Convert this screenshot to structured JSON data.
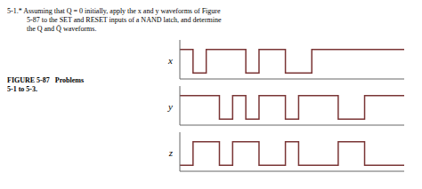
{
  "chart_data": [
    {
      "type": "line",
      "line_style": "step",
      "color": "#7a3535",
      "ylabel": "x",
      "tick_labels": false,
      "xlim": [
        0,
        17
      ],
      "ylim": [
        -0.25,
        1.4
      ],
      "annotations": [
        "5-1.* Assuming that Q = 0 initially, apply the x and y waveforms of Figure",
        "5-87 to the SET and RESET inputs of a NAND latch, and determine",
        "the Q and Q̄ waveforms.",
        "FIGURE 5-87   Problems",
        "5-1 to 5-3."
      ],
      "x": [
        0,
        1,
        1,
        2,
        2,
        5,
        5,
        6,
        6,
        8,
        8,
        10,
        10,
        17
      ],
      "values": [
        1,
        1,
        0,
        0,
        1,
        1,
        0,
        0,
        1,
        1,
        0,
        0,
        1,
        1
      ]
    },
    {
      "type": "line",
      "line_style": "step",
      "color": "#7a3535",
      "ylabel": "y",
      "tick_labels": false,
      "xlim": [
        0,
        17
      ],
      "ylim": [
        -0.25,
        1.4
      ],
      "x": [
        0,
        3,
        3,
        4,
        4,
        5,
        5,
        6,
        6,
        8,
        8,
        9,
        9,
        12,
        12,
        14,
        14,
        17
      ],
      "values": [
        1,
        1,
        0,
        0,
        1,
        1,
        0,
        0,
        1,
        1,
        0,
        0,
        1,
        1,
        0,
        0,
        1,
        1
      ]
    },
    {
      "type": "line",
      "line_style": "step",
      "color": "#7a3535",
      "ylabel": "z",
      "tick_labels": false,
      "xlim": [
        0,
        17
      ],
      "ylim": [
        -0.25,
        1.4
      ],
      "x": [
        0,
        1,
        1,
        3,
        3,
        4,
        4,
        6,
        6,
        8,
        8,
        9,
        9,
        12,
        12,
        14,
        14,
        17
      ],
      "values": [
        0,
        0,
        1,
        1,
        0,
        0,
        1,
        1,
        0,
        0,
        1,
        1,
        0,
        0,
        1,
        1,
        0,
        0
      ]
    }
  ]
}
